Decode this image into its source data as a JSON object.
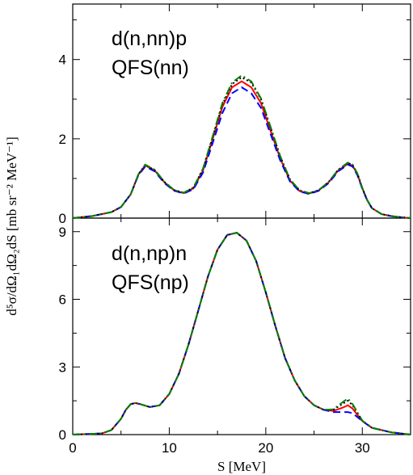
{
  "chart_data": {
    "type": "line",
    "xlabel": "S [MeV]",
    "ylabel": "d⁵σ/dΩ₁dΩ₂dS [mb sr⁻² MeV⁻¹]",
    "xlim": [
      0,
      35
    ],
    "x_ticks": [
      "0",
      "10",
      "20",
      "30"
    ],
    "grid": false,
    "series_styles": [
      {
        "color": "#ff0000",
        "dash": ""
      },
      {
        "color": "#0000ff",
        "dash": "9,5"
      },
      {
        "color": "#000000",
        "dash": "2,3"
      },
      {
        "color": "#008000",
        "dash": "10,4,2,4"
      }
    ],
    "panels": [
      {
        "id": "top",
        "annotation_lines": [
          "d(n,nn)p",
          "QFS(nn)"
        ],
        "ylim": [
          0,
          5.4
        ],
        "y_ticks": [
          0,
          2,
          4
        ],
        "series": [
          {
            "x": [
              0,
              2,
              4,
              5,
              6,
              6.8,
              7.5,
              8.5,
              9.5,
              10.5,
              11.5,
              12.5,
              13.5,
              14.5,
              15.5,
              16.5,
              17.5,
              18.5,
              19.5,
              20.5,
              21.5,
              22.5,
              23.5,
              24.5,
              25.5,
              26.5,
              27.5,
              28.5,
              29,
              29.5,
              30,
              30.5,
              31,
              32,
              33,
              34,
              35
            ],
            "y": [
              0,
              0.05,
              0.15,
              0.28,
              0.6,
              1.1,
              1.33,
              1.2,
              0.9,
              0.7,
              0.63,
              0.75,
              1.2,
              2,
              2.8,
              3.3,
              3.45,
              3.3,
              2.9,
              2.2,
              1.5,
              0.95,
              0.68,
              0.62,
              0.7,
              0.9,
              1.2,
              1.37,
              1.32,
              1.1,
              0.75,
              0.45,
              0.25,
              0.1,
              0.05,
              0.02,
              0
            ]
          },
          {
            "x": [
              0,
              2,
              4,
              5,
              6,
              6.8,
              7.5,
              8.5,
              9.5,
              10.5,
              11.5,
              12.5,
              13.5,
              14.5,
              15.5,
              16.5,
              17.5,
              18.5,
              19.5,
              20.5,
              21.5,
              22.5,
              23.5,
              24.5,
              25.5,
              26.5,
              27.5,
              28.5,
              29,
              29.5,
              30,
              30.5,
              31,
              32,
              33,
              34,
              35
            ],
            "y": [
              0,
              0.05,
              0.15,
              0.28,
              0.6,
              1.08,
              1.3,
              1.18,
              0.88,
              0.69,
              0.62,
              0.73,
              1.15,
              1.9,
              2.65,
              3.15,
              3.3,
              3.15,
              2.78,
              2.12,
              1.45,
              0.93,
              0.67,
              0.61,
              0.69,
              0.88,
              1.18,
              1.35,
              1.3,
              1.08,
              0.74,
              0.45,
              0.25,
              0.1,
              0.05,
              0.02,
              0
            ]
          },
          {
            "x": [
              0,
              2,
              4,
              5,
              6,
              6.8,
              7.5,
              8.5,
              9.5,
              10.5,
              11.5,
              12.5,
              13.5,
              14.5,
              15.5,
              16.5,
              17.5,
              18.5,
              19.5,
              20.5,
              21.5,
              22.5,
              23.5,
              24.5,
              25.5,
              26.5,
              27.5,
              28.5,
              29,
              29.5,
              30,
              30.5,
              31,
              32,
              33,
              34,
              35
            ],
            "y": [
              0,
              0.05,
              0.15,
              0.28,
              0.6,
              1.1,
              1.34,
              1.21,
              0.91,
              0.71,
              0.64,
              0.77,
              1.24,
              2.05,
              2.86,
              3.38,
              3.55,
              3.42,
              3,
              2.28,
              1.55,
              0.98,
              0.7,
              0.63,
              0.71,
              0.91,
              1.22,
              1.39,
              1.34,
              1.12,
              0.76,
              0.46,
              0.25,
              0.1,
              0.05,
              0.02,
              0
            ]
          },
          {
            "x": [
              0,
              2,
              4,
              5,
              6,
              6.8,
              7.5,
              8.5,
              9.5,
              10.5,
              11.5,
              12.5,
              13.5,
              14.5,
              15.5,
              16.5,
              17.5,
              18.5,
              19.5,
              20.5,
              21.5,
              22.5,
              23.5,
              24.5,
              25.5,
              26.5,
              27.5,
              28.5,
              29,
              29.5,
              30,
              30.5,
              31,
              32,
              33,
              34,
              35
            ],
            "y": [
              0,
              0.05,
              0.15,
              0.28,
              0.6,
              1.1,
              1.35,
              1.22,
              0.91,
              0.71,
              0.64,
              0.77,
              1.25,
              2.07,
              2.9,
              3.42,
              3.6,
              3.45,
              3.02,
              2.3,
              1.56,
              0.98,
              0.7,
              0.63,
              0.71,
              0.91,
              1.22,
              1.4,
              1.35,
              1.12,
              0.76,
              0.46,
              0.25,
              0.1,
              0.05,
              0.02,
              0
            ]
          }
        ]
      },
      {
        "id": "bottom",
        "annotation_lines": [
          "d(n,np)n",
          "QFS(np)"
        ],
        "ylim": [
          0,
          9.6
        ],
        "y_ticks": [
          0,
          3,
          6,
          9
        ],
        "series": [
          {
            "x": [
              0,
              3,
              4,
              5,
              5.5,
              6,
              6.5,
              7,
              8,
              9,
              10,
              11,
              12,
              13,
              14,
              15,
              16,
              17,
              18,
              19,
              20,
              21,
              22,
              23,
              24,
              25,
              26,
              27,
              28,
              28.5,
              29,
              30,
              31,
              33,
              35
            ],
            "y": [
              0,
              0.05,
              0.2,
              0.7,
              1.1,
              1.35,
              1.4,
              1.35,
              1.22,
              1.3,
              1.8,
              2.7,
              4,
              5.5,
              7,
              8.2,
              8.85,
              8.95,
              8.6,
              7.7,
              6.3,
              4.8,
              3.4,
              2.4,
              1.7,
              1.3,
              1.1,
              1.05,
              1.2,
              1.3,
              1.15,
              0.6,
              0.3,
              0.1,
              0
            ]
          },
          {
            "x": [
              0,
              3,
              4,
              5,
              5.5,
              6,
              6.5,
              7,
              8,
              9,
              10,
              11,
              12,
              13,
              14,
              15,
              16,
              17,
              18,
              19,
              20,
              21,
              22,
              23,
              24,
              25,
              26,
              27,
              28,
              28.5,
              29,
              30,
              31,
              33,
              35
            ],
            "y": [
              0,
              0.05,
              0.2,
              0.7,
              1.1,
              1.35,
              1.4,
              1.35,
              1.22,
              1.3,
              1.8,
              2.7,
              4,
              5.5,
              7,
              8.2,
              8.85,
              8.95,
              8.6,
              7.7,
              6.3,
              4.8,
              3.4,
              2.4,
              1.7,
              1.3,
              1.1,
              1,
              1,
              1,
              0.95,
              0.6,
              0.3,
              0.1,
              0
            ]
          },
          {
            "x": [
              0,
              3,
              4,
              5,
              5.5,
              6,
              6.5,
              7,
              8,
              9,
              10,
              11,
              12,
              13,
              14,
              15,
              16,
              17,
              18,
              19,
              20,
              21,
              22,
              23,
              24,
              25,
              26,
              27,
              28,
              28.5,
              29,
              30,
              31,
              33,
              35
            ],
            "y": [
              0,
              0.05,
              0.2,
              0.7,
              1.1,
              1.35,
              1.4,
              1.35,
              1.22,
              1.3,
              1.8,
              2.7,
              4,
              5.5,
              7,
              8.2,
              8.85,
              8.95,
              8.6,
              7.7,
              6.3,
              4.8,
              3.4,
              2.4,
              1.7,
              1.3,
              1.1,
              1.1,
              1.38,
              1.5,
              1.3,
              0.62,
              0.3,
              0.1,
              0
            ]
          },
          {
            "x": [
              0,
              3,
              4,
              5,
              5.5,
              6,
              6.5,
              7,
              8,
              9,
              10,
              11,
              12,
              13,
              14,
              15,
              16,
              17,
              18,
              19,
              20,
              21,
              22,
              23,
              24,
              25,
              26,
              27,
              28,
              28.5,
              29,
              30,
              31,
              33,
              35
            ],
            "y": [
              0,
              0.05,
              0.2,
              0.7,
              1.1,
              1.35,
              1.4,
              1.35,
              1.22,
              1.3,
              1.8,
              2.7,
              4,
              5.5,
              7,
              8.2,
              8.85,
              8.95,
              8.6,
              7.7,
              6.3,
              4.8,
              3.4,
              2.4,
              1.7,
              1.3,
              1.1,
              1.12,
              1.45,
              1.6,
              1.35,
              0.62,
              0.3,
              0.1,
              0
            ]
          }
        ]
      }
    ]
  }
}
